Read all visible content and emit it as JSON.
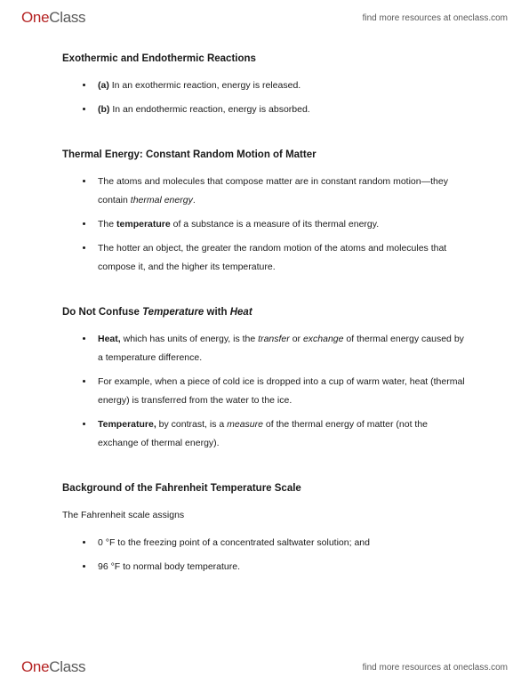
{
  "brand": {
    "one": "One",
    "class": "Class"
  },
  "tagline": "find more resources at oneclass.com",
  "sections": [
    {
      "title": "Exothermic and Endothermic Reactions",
      "items": [
        {
          "label_bold": "(a)",
          "text": " In an exothermic reaction, energy is released."
        },
        {
          "label_bold": "(b)",
          "text": " In an endothermic reaction, energy is absorbed."
        }
      ]
    },
    {
      "title": "Thermal Energy: Constant Random Motion of Matter",
      "items": [
        {
          "pre": "The atoms and molecules that compose matter are in constant random motion—they contain ",
          "italic": "thermal energy",
          "post": "."
        },
        {
          "pre": "The ",
          "bold": "temperature",
          "post": " of a substance is a measure of its thermal energy."
        },
        {
          "text": "The hotter an object, the greater the random motion of the atoms and molecules that compose it, and the higher its temperature."
        }
      ]
    },
    {
      "title_parts": {
        "pre": "Do Not Confuse ",
        "i1": "Temperature",
        "mid": " with ",
        "i2": "Heat"
      },
      "items": [
        {
          "bold": "Heat,",
          "mid": " which has units of energy, is the ",
          "i1": "transfer",
          "mid2": " or ",
          "i2": "exchange",
          "post": " of thermal energy caused by a temperature difference."
        },
        {
          "text": "For example, when a piece of cold ice is dropped into a cup of warm water, heat (thermal energy) is transferred from the water to the ice."
        },
        {
          "bold": "Temperature,",
          "mid": " by contrast, is a ",
          "i1": "measure",
          "post": " of the thermal energy of matter (not the exchange of thermal energy)."
        }
      ]
    },
    {
      "title": "Background of the Fahrenheit Temperature Scale",
      "lead": "The Fahrenheit scale assigns",
      "items": [
        {
          "text": "0 °F to the freezing point of a concentrated saltwater solution; and"
        },
        {
          "text": "96 °F to normal body temperature."
        }
      ]
    }
  ]
}
